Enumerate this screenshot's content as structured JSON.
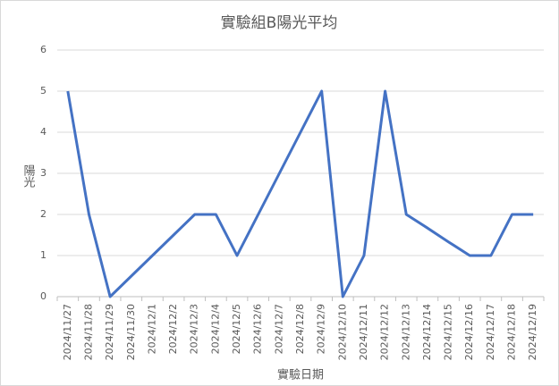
{
  "chart_data": {
    "type": "line",
    "title": "實驗組B陽光平均",
    "x_label": "實驗日期",
    "y_label": "陽光",
    "categories": [
      "2024/11/27",
      "2024/11/28",
      "2024/11/29",
      "2024/11/30",
      "2024/12/1",
      "2024/12/2",
      "2024/12/3",
      "2024/12/4",
      "2024/12/5",
      "2024/12/6",
      "2024/12/7",
      "2024/12/8",
      "2024/12/9",
      "2024/12/10",
      "2024/12/11",
      "2024/12/12",
      "2024/12/13",
      "2024/12/14",
      "2024/12/15",
      "2024/12/16",
      "2024/12/17",
      "2024/12/18",
      "2024/12/19"
    ],
    "values": [
      5,
      2,
      0,
      0.5,
      1,
      1.5,
      2,
      2,
      1,
      2,
      3,
      4,
      5,
      0,
      1,
      5,
      2,
      1.67,
      1.33,
      1,
      1,
      2,
      2
    ],
    "color": "#4472c4",
    "ylim": [
      0,
      6
    ],
    "yticks": [
      0,
      1,
      2,
      3,
      4,
      5,
      6
    ],
    "grid": true
  }
}
